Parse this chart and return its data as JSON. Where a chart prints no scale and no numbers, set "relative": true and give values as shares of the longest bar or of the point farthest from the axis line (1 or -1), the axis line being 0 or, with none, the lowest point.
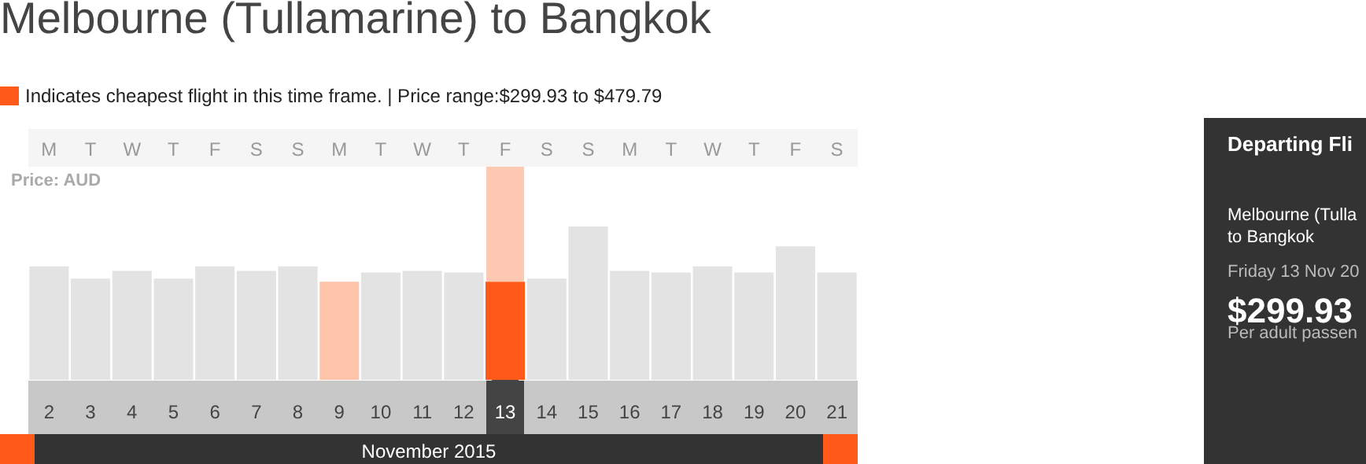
{
  "chart_data": {
    "type": "bar",
    "title": "Melbourne (Tullamarine) to Bangkok",
    "ylabel": "Price: AUD",
    "relative": true,
    "categories": [
      "2",
      "3",
      "4",
      "5",
      "6",
      "7",
      "8",
      "9",
      "10",
      "11",
      "12",
      "13",
      "14",
      "15",
      "16",
      "17",
      "18",
      "19",
      "20",
      "21"
    ],
    "series": [
      {
        "name": "Indicates cheapest flight in this time frame. | Price range:$299.93 to $479.79",
        "color": "#ff5a1a",
        "colors": [
          "#e3e3e3",
          "#e3e3e3",
          "#e3e3e3",
          "#e3e3e3",
          "#e3e3e3",
          "#e3e3e3",
          "#e3e3e3",
          "#fdc4aa",
          "#e3e3e3",
          "#e3e3e3",
          "#e3e3e3",
          "#ff5a1a",
          "#e3e3e3",
          "#e3e3e3",
          "#e3e3e3",
          "#e3e3e3",
          "#e3e3e3",
          "#e3e3e3",
          "#e3e3e3",
          "#e3e3e3"
        ],
        "values": [
          0.74,
          0.66,
          0.71,
          0.66,
          0.74,
          0.71,
          0.74,
          0.64,
          0.7,
          0.71,
          0.7,
          0.64,
          0.66,
          1,
          0.71,
          0.7,
          0.74,
          0.7,
          0.87,
          0.7
        ]
      }
    ],
    "legend": "top left",
    "annotations": [
      "M",
      "T",
      "W",
      "T",
      "F",
      "S",
      "S",
      "M",
      "T",
      "W",
      "T",
      "F",
      "S",
      "S",
      "M",
      "T",
      "W",
      "T",
      "F",
      "S",
      "November 2015",
      "Departing Fli",
      "Melbourne (Tulla",
      "to Bangkok",
      "Friday 13 Nov 20",
      "$299.93",
      "Per adult passen"
    ]
  }
}
